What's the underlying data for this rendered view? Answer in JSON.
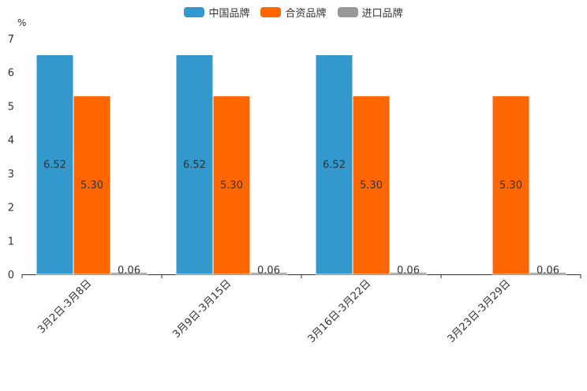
{
  "chart_data": {
    "type": "bar",
    "ylabel": "%",
    "ylim": [
      0,
      7
    ],
    "yticks": [
      "0",
      "1",
      "2",
      "3",
      "4",
      "5",
      "6",
      "7"
    ],
    "categories": [
      "3月2日-3月8日",
      "3月9日-3月15日",
      "3月16日-3月22日",
      "3月23日-3月29日"
    ],
    "series": [
      {
        "name": "中国品牌",
        "color": "#3398cc",
        "values": [
          6.52,
          6.52,
          6.52,
          null
        ],
        "labels": [
          "6.52",
          "6.52",
          "6.52",
          ""
        ]
      },
      {
        "name": "合资品牌",
        "color": "#ff6600",
        "values": [
          5.3,
          5.3,
          5.3,
          5.3
        ],
        "labels": [
          "5.30",
          "5.30",
          "5.30",
          "5.30"
        ]
      },
      {
        "name": "进口品牌",
        "color": "#999999",
        "values": [
          0.06,
          0.06,
          0.06,
          0.06
        ],
        "labels": [
          "0.06",
          "0.06",
          "0.06",
          "0.06"
        ]
      }
    ],
    "legend_position": "top-center"
  }
}
